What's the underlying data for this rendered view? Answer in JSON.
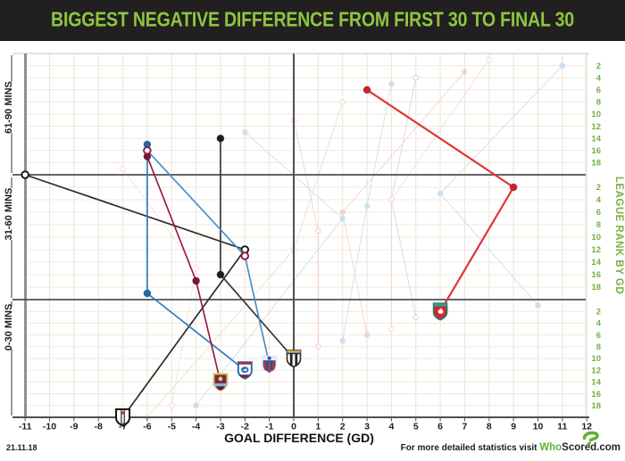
{
  "header": {
    "title": "BIGGEST NEGATIVE DIFFERENCE FROM FIRST 30 TO FINAL 30"
  },
  "footer": {
    "date": "21.11.18",
    "promo": "For more detailed statistics visit",
    "brand_who": "Who",
    "brand_rest": "Scored.com"
  },
  "colors": {
    "header_bg": "#221f20",
    "title_green": "#8dc63f",
    "rank_green": "#76b043",
    "grid": "#ece5d3",
    "grid_h": "#f0ead9",
    "frame_dark": "#4f4f4f",
    "left_bar": "#8f8f8f",
    "tick_text": "#1d1d1d"
  },
  "chart_data": {
    "type": "line",
    "title": "BIGGEST NEGATIVE DIFFERENCE FROM FIRST 30 TO FINAL 30",
    "xlabel": "GOAL DIFFERENCE (GD)",
    "right_axis_label": "LEAGUE RANK BY GD",
    "xlim": [
      -11,
      12
    ],
    "x_ticks": [
      -11,
      -10,
      -9,
      -8,
      -7,
      -6,
      -5,
      -4,
      -3,
      -2,
      -1,
      0,
      1,
      2,
      3,
      4,
      5,
      6,
      7,
      8,
      9,
      10,
      11,
      12
    ],
    "rank_ticks": [
      2,
      4,
      6,
      8,
      10,
      12,
      14,
      16,
      18
    ],
    "rank_range": [
      1,
      20
    ],
    "grid": true,
    "legend_position": "none",
    "bands": [
      {
        "label": "61-90 MINS"
      },
      {
        "label": "31-60 MINS"
      },
      {
        "label": "0-30 MINS"
      }
    ],
    "teams": [
      {
        "name": "Fulham",
        "line_color": "#2b2b2b",
        "marker": "open",
        "marker_color": "#151515",
        "badge_style": "fulham",
        "points": [
          {
            "period": "61-90",
            "gd": -11,
            "rank": 20
          },
          {
            "period": "31-60",
            "gd": -2,
            "rank": 12
          },
          {
            "period": "0-30",
            "gd": -7,
            "rank": 20
          }
        ]
      },
      {
        "name": "Newcastle United",
        "line_color": "#383838",
        "marker": "filled",
        "marker_color": "#1c1c1c",
        "badge_style": "newcastle",
        "points": [
          {
            "period": "61-90",
            "gd": -3,
            "rank": 14
          },
          {
            "period": "31-60",
            "gd": -3,
            "rank": 16
          },
          {
            "period": "0-30",
            "gd": 0,
            "rank": 10
          }
        ]
      },
      {
        "name": "Cardiff City",
        "line_color": "#2e7cbd",
        "marker": "filled",
        "marker_color": "#1f6bab",
        "badge_style": "cardiff",
        "points": [
          {
            "period": "61-90",
            "gd": -6,
            "rank": 15
          },
          {
            "period": "31-60",
            "gd": -6,
            "rank": 19
          },
          {
            "period": "0-30",
            "gd": -2,
            "rank": 12
          }
        ]
      },
      {
        "name": "Crystal Palace",
        "line_color": "#4a8fcb",
        "marker": "open",
        "marker_color": "#8e1540",
        "badge_style": "palace",
        "points": [
          {
            "period": "61-90",
            "gd": -6,
            "rank": 16
          },
          {
            "period": "31-60",
            "gd": -2,
            "rank": 13
          },
          {
            "period": "0-30",
            "gd": -1,
            "rank": 11
          }
        ]
      },
      {
        "name": "Burnley",
        "line_color": "#9c1c47",
        "marker": "filled",
        "marker_color": "#7e1239",
        "badge_style": "burnley",
        "points": [
          {
            "period": "61-90",
            "gd": -6,
            "rank": 17
          },
          {
            "period": "31-60",
            "gd": -4,
            "rank": 17
          },
          {
            "period": "0-30",
            "gd": -3,
            "rank": 14
          }
        ]
      },
      {
        "name": "Liverpool",
        "line_color": "#e0333a",
        "marker": "filled",
        "marker_color": "#cf2129",
        "badge_style": "liverpool",
        "points": [
          {
            "period": "61-90",
            "gd": 3,
            "rank": 6
          },
          {
            "period": "31-60",
            "gd": 9,
            "rank": 2
          },
          {
            "period": "0-30",
            "gd": 6,
            "rank": 2
          }
        ]
      }
    ],
    "background_teams": [
      {
        "approx": true,
        "color": "#a6cce7",
        "marker": "filled",
        "points": [
          {
            "gd": 11,
            "rank": 2
          },
          {
            "gd": 6,
            "rank": 3
          },
          {
            "gd": 10,
            "rank": 1
          }
        ]
      },
      {
        "approx": true,
        "color": "#aacfe8",
        "marker": "filled",
        "points": [
          {
            "gd": 4,
            "rank": 5
          },
          {
            "gd": 3,
            "rank": 5
          },
          {
            "gd": 2,
            "rank": 7
          }
        ]
      },
      {
        "approx": true,
        "color": "#b8c4ce",
        "marker": "open",
        "points": [
          {
            "gd": 5,
            "rank": 4
          },
          {
            "gd": 4,
            "rank": 4
          },
          {
            "gd": 5,
            "rank": 3
          }
        ]
      },
      {
        "approx": true,
        "color": "#f2b8ba",
        "marker": "filled",
        "points": [
          {
            "gd": 7,
            "rank": 3
          },
          {
            "gd": 2,
            "rank": 6
          },
          {
            "gd": 3,
            "rank": 6
          }
        ]
      },
      {
        "approx": true,
        "color": "#f0b3b6",
        "marker": "open",
        "points": [
          {
            "gd": 0,
            "rank": 11
          },
          {
            "gd": 1,
            "rank": 9
          },
          {
            "gd": 1,
            "rank": 8
          }
        ]
      },
      {
        "approx": true,
        "color": "#f6ccd4",
        "marker": "diamond",
        "points": [
          {
            "gd": -7,
            "rank": 19
          },
          {
            "gd": -4,
            "rank": 15
          },
          {
            "gd": -5,
            "rank": 18
          }
        ]
      },
      {
        "approx": true,
        "color": "#d8d0c2",
        "marker": "open",
        "points": [
          {
            "gd": 2,
            "rank": 8
          },
          {
            "gd": 0,
            "rank": 12
          },
          {
            "gd": -6,
            "rank": 20
          }
        ]
      },
      {
        "approx": true,
        "color": "#a5cde2",
        "marker": "filled",
        "points": [
          {
            "gd": -2,
            "rank": 13
          },
          {
            "gd": 2,
            "rank": 7
          },
          {
            "gd": -4,
            "rank": 18
          }
        ]
      },
      {
        "approx": true,
        "color": "#f3c6cf",
        "marker": "open",
        "points": [
          {
            "gd": 8,
            "rank": 1
          },
          {
            "gd": 4,
            "rank": 4
          },
          {
            "gd": 4,
            "rank": 5
          }
        ]
      }
    ]
  }
}
